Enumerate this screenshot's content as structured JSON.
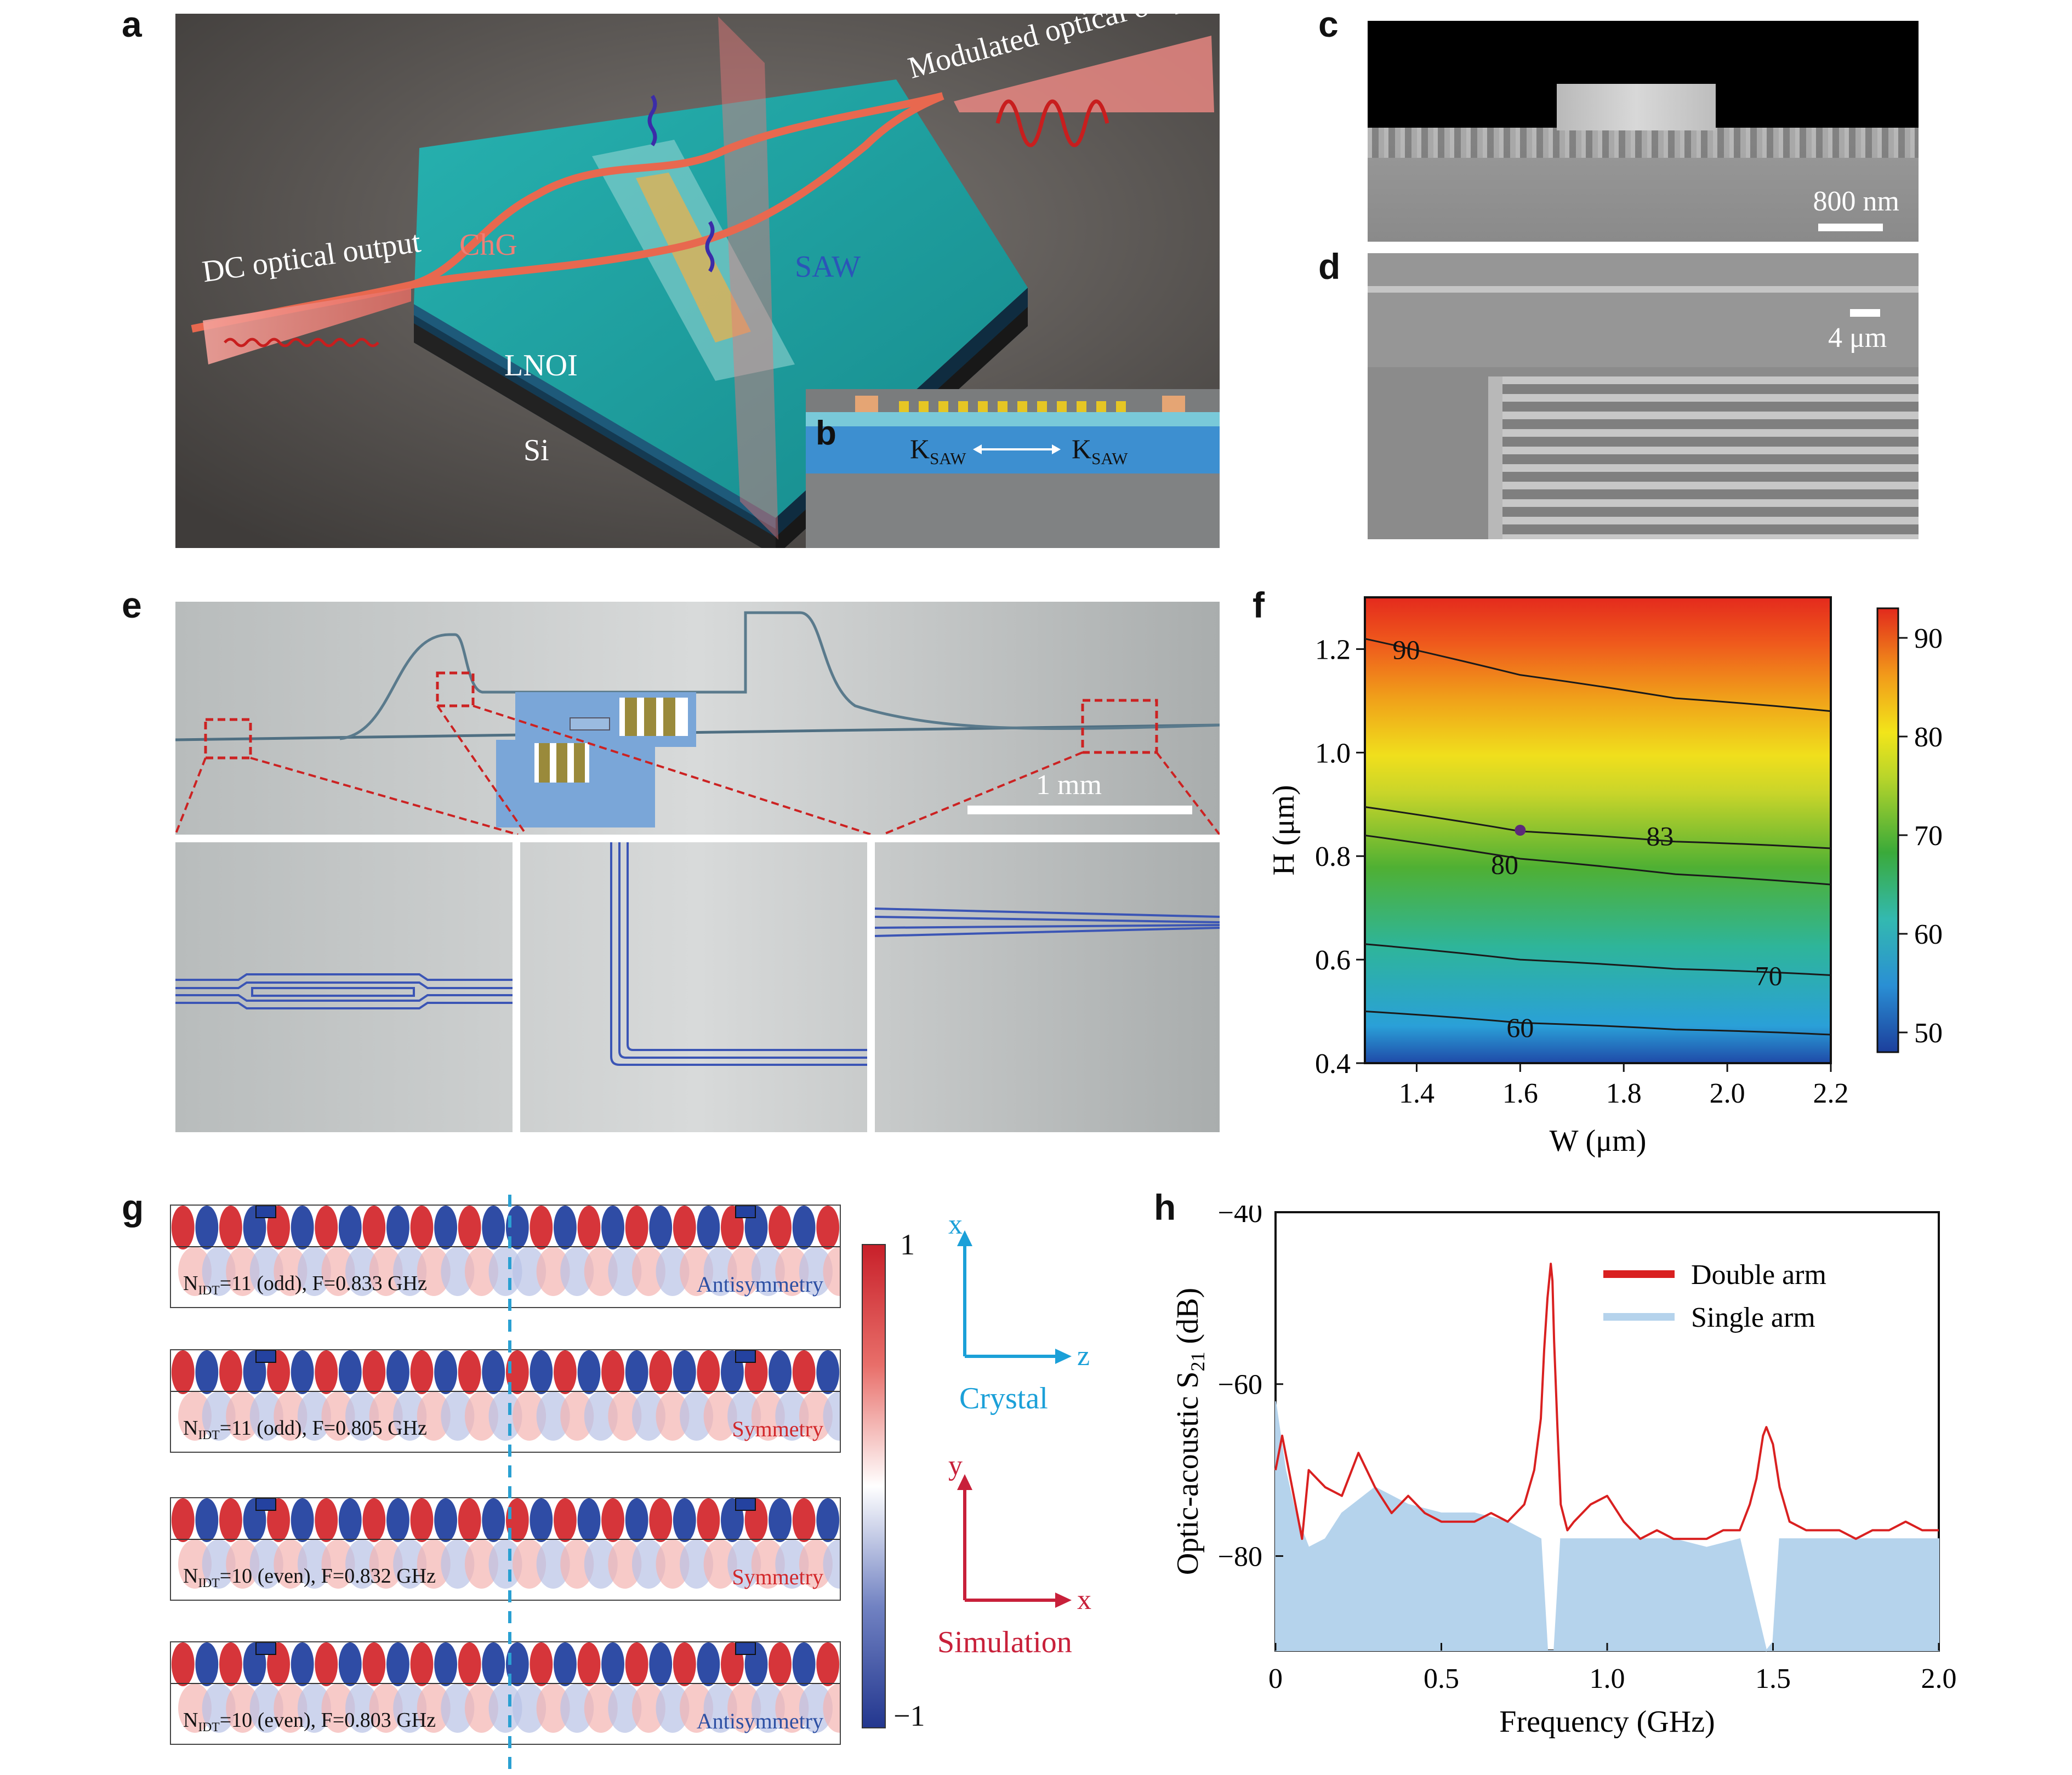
{
  "panels": {
    "a": {
      "letter": "a",
      "labels": {
        "modulated": "Modulated optical output",
        "dc": "DC optical output",
        "chg": "ChG",
        "saw": "SAW",
        "lnoi": "LNOI",
        "si": "Si"
      },
      "colors": {
        "background": "#5b5753",
        "top_surface": "#1d9e9e",
        "waveguide": "#e8684f",
        "beam": "#f08a84"
      }
    },
    "b": {
      "letter": "b",
      "k_left": "K",
      "k_left_sub": "SAW",
      "k_right": "K",
      "k_right_sub": "SAW"
    },
    "c": {
      "letter": "c",
      "scale_text": "800 nm"
    },
    "d": {
      "letter": "d",
      "scale_text": "4 μm"
    },
    "e": {
      "letter": "e",
      "scale_text": "1 mm"
    },
    "f": {
      "letter": "f"
    },
    "g": {
      "letter": "g",
      "rows": [
        {
          "label_n": "N",
          "label_sub": "IDT",
          "label_rest": "=11 (odd), F=0.833 GHz",
          "mode": "Antisymmetry",
          "mode_color": "#2c4fa3"
        },
        {
          "label_n": "N",
          "label_sub": "IDT",
          "label_rest": "=11 (odd), F=0.805 GHz",
          "mode": "Symmetry",
          "mode_color": "#d2272a"
        },
        {
          "label_n": "N",
          "label_sub": "IDT",
          "label_rest": "=10 (even), F=0.832 GHz",
          "mode": "Symmetry",
          "mode_color": "#d2272a"
        },
        {
          "label_n": "N",
          "label_sub": "IDT",
          "label_rest": "=10 (even), F=0.803 GHz",
          "mode": "Antisymmetry",
          "mode_color": "#2c4fa3"
        }
      ],
      "colorbar": {
        "max": "1",
        "min": "−1"
      },
      "crystal_axes": {
        "x": "x",
        "z": "z",
        "name": "Crystal",
        "color": "#1ba0d8"
      },
      "sim_axes": {
        "y": "y",
        "x": "x",
        "name": "Simulation",
        "color": "#c8203a"
      }
    },
    "h": {
      "letter": "h"
    }
  },
  "chart_data": [
    {
      "panel": "f",
      "type": "heatmap",
      "xlabel": "W (μm)",
      "ylabel": "H (μm)",
      "xlim": [
        1.3,
        2.2
      ],
      "ylim": [
        0.4,
        1.3
      ],
      "xticks": [
        "1.4",
        "1.6",
        "1.8",
        "2.0",
        "2.2"
      ],
      "yticks": [
        "0.4",
        "0.6",
        "0.8",
        "1.0",
        "1.2"
      ],
      "colorbar_ticks": [
        "50",
        "60",
        "70",
        "80",
        "90"
      ],
      "colorbar_range": [
        48,
        93
      ],
      "contours": [
        {
          "level": "60",
          "points": [
            [
              1.3,
              0.5
            ],
            [
              1.6,
              0.478
            ],
            [
              1.9,
              0.465
            ],
            [
              2.2,
              0.455
            ]
          ],
          "label_at": [
            1.6,
            0.47
          ]
        },
        {
          "level": "70",
          "points": [
            [
              1.3,
              0.63
            ],
            [
              1.6,
              0.6
            ],
            [
              1.9,
              0.582
            ],
            [
              2.2,
              0.57
            ]
          ],
          "label_at": [
            2.08,
            0.57
          ]
        },
        {
          "level": "80",
          "points": [
            [
              1.3,
              0.84
            ],
            [
              1.6,
              0.795
            ],
            [
              1.9,
              0.765
            ],
            [
              2.2,
              0.745
            ]
          ],
          "label_at": [
            1.57,
            0.785
          ]
        },
        {
          "level": "83",
          "points": [
            [
              1.3,
              0.895
            ],
            [
              1.6,
              0.848
            ],
            [
              1.9,
              0.828
            ],
            [
              2.2,
              0.815
            ]
          ],
          "label_at": [
            1.87,
            0.84
          ]
        },
        {
          "level": "90",
          "points": [
            [
              1.3,
              1.22
            ],
            [
              1.6,
              1.15
            ],
            [
              1.9,
              1.105
            ],
            [
              2.2,
              1.08
            ]
          ],
          "label_at": [
            1.38,
            1.2
          ]
        }
      ],
      "marker": {
        "x": 1.6,
        "y": 0.85
      }
    },
    {
      "panel": "h",
      "type": "line",
      "xlabel": "Frequency (GHz)",
      "ylabel_main": "Optic-acoustic S",
      "ylabel_sub": "21",
      "ylabel_unit": " (dB)",
      "xlim": [
        0,
        2.0
      ],
      "ylim": [
        -91,
        -40
      ],
      "xticks": [
        "0",
        "0.5",
        "1.0",
        "1.5",
        "2.0"
      ],
      "yticks": [
        "−40",
        "−60",
        "−80"
      ],
      "ytick_values": [
        -40,
        -60,
        -80
      ],
      "series": [
        {
          "name": "Double arm",
          "color": "#d92020",
          "x": [
            0.0,
            0.02,
            0.05,
            0.08,
            0.1,
            0.15,
            0.2,
            0.25,
            0.3,
            0.35,
            0.4,
            0.45,
            0.5,
            0.55,
            0.6,
            0.65,
            0.7,
            0.75,
            0.78,
            0.8,
            0.81,
            0.82,
            0.83,
            0.835,
            0.84,
            0.85,
            0.86,
            0.88,
            0.9,
            0.95,
            1.0,
            1.05,
            1.1,
            1.15,
            1.2,
            1.25,
            1.3,
            1.35,
            1.4,
            1.43,
            1.45,
            1.47,
            1.48,
            1.5,
            1.52,
            1.55,
            1.6,
            1.65,
            1.7,
            1.75,
            1.8,
            1.85,
            1.9,
            1.95,
            2.0
          ],
          "values": [
            -70,
            -66,
            -72,
            -78,
            -70,
            -72,
            -73,
            -68,
            -72,
            -75,
            -73,
            -75,
            -76,
            -76,
            -76,
            -75,
            -76,
            -74,
            -70,
            -64,
            -56,
            -50,
            -46,
            -48,
            -55,
            -65,
            -74,
            -77,
            -76,
            -74,
            -73,
            -76,
            -78,
            -77,
            -78,
            -78,
            -78,
            -77,
            -77,
            -74,
            -71,
            -66,
            -65,
            -67,
            -72,
            -76,
            -77,
            -77,
            -77,
            -78,
            -77,
            -77,
            -76,
            -77,
            -77
          ]
        },
        {
          "name": "Single arm",
          "color": "#b5d3ec",
          "x": [
            0.0,
            0.03,
            0.06,
            0.1,
            0.15,
            0.2,
            0.3,
            0.4,
            0.5,
            0.6,
            0.7,
            0.8,
            0.82,
            0.84,
            0.86,
            0.9,
            1.0,
            1.1,
            1.2,
            1.3,
            1.4,
            1.48,
            1.5,
            1.52,
            1.6,
            1.7,
            1.8,
            1.9,
            2.0
          ],
          "values": [
            -62,
            -70,
            -75,
            -79,
            -78,
            -75,
            -72,
            -74,
            -75,
            -75,
            -76,
            -78,
            -91,
            -91,
            -78,
            -78,
            -78,
            -78,
            -78,
            -79,
            -78,
            -91,
            -90,
            -78,
            -78,
            -78,
            -78,
            -78,
            -78
          ]
        }
      ],
      "legend_placement": "top-right"
    }
  ]
}
